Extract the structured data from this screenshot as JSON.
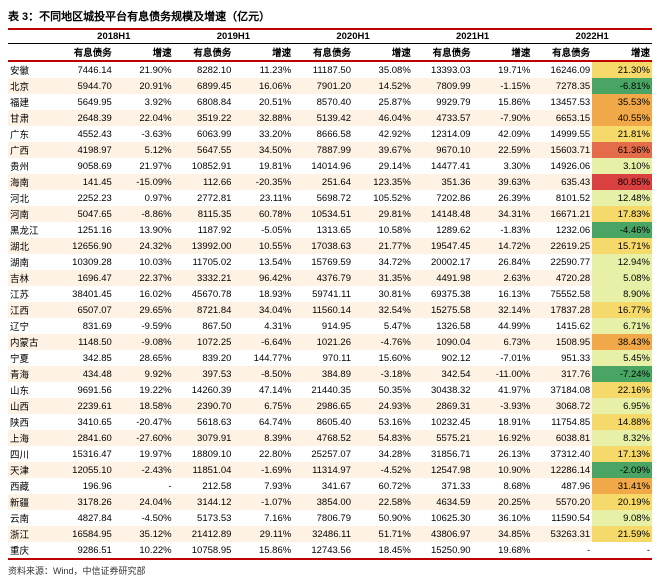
{
  "title": "表 3：不同地区城投平台有息债务规模及增速（亿元）",
  "footer": "资料来源：Wind，中信证券研究部",
  "years": [
    "2018H1",
    "2019H1",
    "2020H1",
    "2021H1",
    "2022H1"
  ],
  "sub_cols": [
    "有息债务",
    "增速"
  ],
  "palette": {
    "neg": "#4aa564",
    "low": "#e8f0a8",
    "mid": "#f6d96b",
    "high": "#f0a848",
    "hot": "#e46c4a",
    "max": "#d94040"
  },
  "rows": [
    {
      "p": "安徽",
      "v": [
        7446.14,
        21.9,
        8282.1,
        11.23,
        11187.5,
        35.08,
        13393.03,
        19.71,
        16246.09,
        21.3
      ],
      "c": "mid"
    },
    {
      "p": "北京",
      "v": [
        5944.7,
        20.91,
        6899.45,
        16.06,
        7901.2,
        14.52,
        7809.99,
        -1.15,
        7278.35,
        -6.81
      ],
      "c": "neg"
    },
    {
      "p": "福建",
      "v": [
        5649.95,
        3.92,
        6808.84,
        20.51,
        8570.4,
        25.87,
        9929.79,
        15.86,
        13457.53,
        35.53
      ],
      "c": "high"
    },
    {
      "p": "甘肃",
      "v": [
        2648.39,
        22.04,
        3519.22,
        32.88,
        5139.42,
        46.04,
        4733.57,
        -7.9,
        6653.15,
        40.55
      ],
      "c": "high"
    },
    {
      "p": "广东",
      "v": [
        4552.43,
        -3.63,
        6063.99,
        33.2,
        8666.58,
        42.92,
        12314.09,
        42.09,
        14999.55,
        21.81
      ],
      "c": "mid"
    },
    {
      "p": "广西",
      "v": [
        4198.97,
        5.12,
        5647.55,
        34.5,
        7887.99,
        39.67,
        9670.1,
        22.59,
        15603.71,
        61.36
      ],
      "c": "hot"
    },
    {
      "p": "贵州",
      "v": [
        9058.69,
        21.97,
        10852.91,
        19.81,
        14014.96,
        29.14,
        14477.41,
        3.3,
        14926.06,
        3.1
      ],
      "c": "low"
    },
    {
      "p": "海南",
      "v": [
        141.45,
        -15.09,
        112.66,
        -20.35,
        251.64,
        123.35,
        351.36,
        39.63,
        635.43,
        80.85
      ],
      "c": "max"
    },
    {
      "p": "河北",
      "v": [
        2252.23,
        0.97,
        2772.81,
        23.11,
        5698.72,
        105.52,
        7202.86,
        26.39,
        8101.52,
        12.48
      ],
      "c": "low"
    },
    {
      "p": "河南",
      "v": [
        5047.65,
        -8.86,
        8115.35,
        60.78,
        10534.51,
        29.81,
        14148.48,
        34.31,
        16671.21,
        17.83
      ],
      "c": "mid"
    },
    {
      "p": "黑龙江",
      "v": [
        1251.16,
        13.9,
        1187.92,
        -5.05,
        1313.65,
        10.58,
        1289.62,
        -1.83,
        1232.06,
        -4.46
      ],
      "c": "neg"
    },
    {
      "p": "湖北",
      "v": [
        12656.9,
        24.32,
        13992.0,
        10.55,
        17038.63,
        21.77,
        19547.45,
        14.72,
        22619.25,
        15.71
      ],
      "c": "mid"
    },
    {
      "p": "湖南",
      "v": [
        10309.28,
        10.03,
        11705.02,
        13.54,
        15769.59,
        34.72,
        20002.17,
        26.84,
        22590.77,
        12.94
      ],
      "c": "low"
    },
    {
      "p": "吉林",
      "v": [
        1696.47,
        22.37,
        3332.21,
        96.42,
        4376.79,
        31.35,
        4491.98,
        2.63,
        4720.28,
        5.08
      ],
      "c": "low"
    },
    {
      "p": "江苏",
      "v": [
        38401.45,
        16.02,
        45670.78,
        18.93,
        59741.11,
        30.81,
        69375.38,
        16.13,
        75552.58,
        8.9
      ],
      "c": "low"
    },
    {
      "p": "江西",
      "v": [
        6507.07,
        29.65,
        8721.84,
        34.04,
        11560.14,
        32.54,
        15275.58,
        32.14,
        17837.28,
        16.77
      ],
      "c": "mid"
    },
    {
      "p": "辽宁",
      "v": [
        831.69,
        -9.59,
        867.5,
        4.31,
        914.95,
        5.47,
        1326.58,
        44.99,
        1415.62,
        6.71
      ],
      "c": "low"
    },
    {
      "p": "内蒙古",
      "v": [
        1148.5,
        -9.08,
        1072.25,
        -6.64,
        1021.26,
        -4.76,
        1090.04,
        6.73,
        1508.95,
        38.43
      ],
      "c": "high"
    },
    {
      "p": "宁夏",
      "v": [
        342.85,
        28.65,
        839.2,
        144.77,
        970.11,
        15.6,
        902.12,
        -7.01,
        951.33,
        5.45
      ],
      "c": "low"
    },
    {
      "p": "青海",
      "v": [
        434.48,
        9.92,
        397.53,
        -8.5,
        384.89,
        -3.18,
        342.54,
        -11.0,
        317.76,
        -7.24
      ],
      "c": "neg"
    },
    {
      "p": "山东",
      "v": [
        9691.56,
        19.22,
        14260.39,
        47.14,
        21440.35,
        50.35,
        30438.32,
        41.97,
        37184.08,
        22.16
      ],
      "c": "mid"
    },
    {
      "p": "山西",
      "v": [
        2239.61,
        18.58,
        2390.7,
        6.75,
        2986.65,
        24.93,
        2869.31,
        -3.93,
        3068.72,
        6.95
      ],
      "c": "low"
    },
    {
      "p": "陕西",
      "v": [
        3410.65,
        -20.47,
        5618.63,
        64.74,
        8605.4,
        53.16,
        10232.45,
        18.91,
        11754.85,
        14.88
      ],
      "c": "mid"
    },
    {
      "p": "上海",
      "v": [
        2841.6,
        -27.6,
        3079.91,
        8.39,
        4768.52,
        54.83,
        5575.21,
        16.92,
        6038.81,
        8.32
      ],
      "c": "low"
    },
    {
      "p": "四川",
      "v": [
        15316.47,
        19.97,
        18809.1,
        22.8,
        25257.07,
        34.28,
        31856.71,
        26.13,
        37312.4,
        17.13
      ],
      "c": "mid"
    },
    {
      "p": "天津",
      "v": [
        12055.1,
        -2.43,
        11851.04,
        -1.69,
        11314.97,
        -4.52,
        12547.98,
        10.9,
        12286.14,
        -2.09
      ],
      "c": "neg"
    },
    {
      "p": "西藏",
      "v": [
        196.96,
        "-",
        212.58,
        7.93,
        341.67,
        60.72,
        371.33,
        8.68,
        487.96,
        31.41
      ],
      "c": "high"
    },
    {
      "p": "新疆",
      "v": [
        3178.26,
        24.04,
        3144.12,
        -1.07,
        3854.0,
        22.58,
        4634.59,
        20.25,
        5570.2,
        20.19
      ],
      "c": "mid"
    },
    {
      "p": "云南",
      "v": [
        4827.84,
        -4.5,
        5173.53,
        7.16,
        7806.79,
        50.9,
        10625.3,
        36.1,
        11590.54,
        9.08
      ],
      "c": "low"
    },
    {
      "p": "浙江",
      "v": [
        16584.95,
        35.12,
        21412.89,
        29.11,
        32486.11,
        51.71,
        43806.97,
        34.85,
        53263.31,
        21.59
      ],
      "c": "mid"
    },
    {
      "p": "重庆",
      "v": [
        9286.51,
        10.22,
        10758.95,
        15.86,
        12743.56,
        18.45,
        15250.9,
        19.68,
        "-",
        "-"
      ],
      "c": null
    }
  ]
}
